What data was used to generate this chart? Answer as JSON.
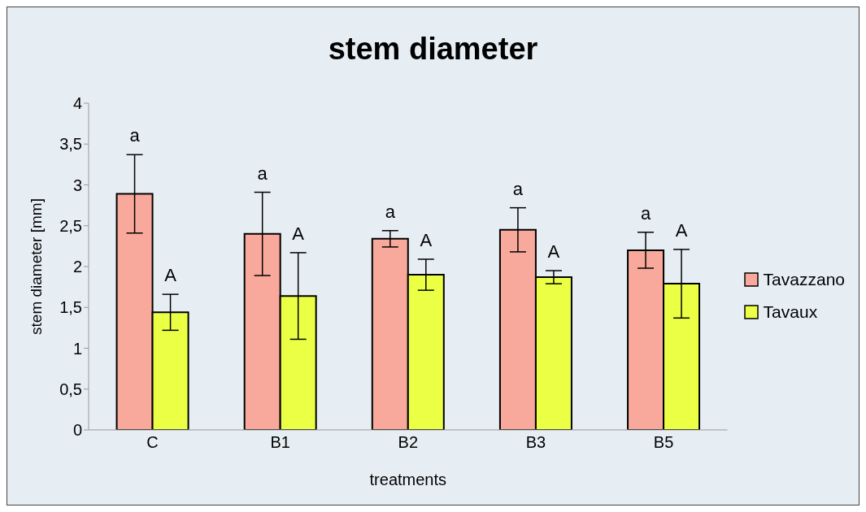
{
  "chart_data": {
    "type": "bar",
    "title": "stem diameter",
    "xlabel": "treatments",
    "ylabel": "stem diameter [mm]",
    "categories": [
      "C",
      "B1",
      "B2",
      "B3",
      "B5"
    ],
    "series": [
      {
        "name": "Tavazzano",
        "color": "#f8a99b",
        "values": [
          2.89,
          2.4,
          2.34,
          2.45,
          2.2
        ],
        "errors": [
          0.48,
          0.51,
          0.1,
          0.27,
          0.22
        ],
        "value_labels": [
          "a",
          "a",
          "a",
          "a",
          "a"
        ]
      },
      {
        "name": "Tavaux",
        "color": "#ebff45",
        "values": [
          1.44,
          1.64,
          1.9,
          1.87,
          1.79
        ],
        "errors": [
          0.22,
          0.53,
          0.19,
          0.08,
          0.42
        ],
        "value_labels": [
          "A",
          "A",
          "A",
          "A",
          "A"
        ]
      }
    ],
    "ylim": [
      0,
      4
    ],
    "yticks": [
      0,
      {
        "value": 0.5,
        "label": "0,5"
      },
      1,
      {
        "value": 1.5,
        "label": "1,5"
      },
      2,
      {
        "value": 2.5,
        "label": "2,5"
      },
      3,
      {
        "value": 3.5,
        "label": "3,5"
      },
      4
    ],
    "grid": false,
    "legend": "right"
  }
}
